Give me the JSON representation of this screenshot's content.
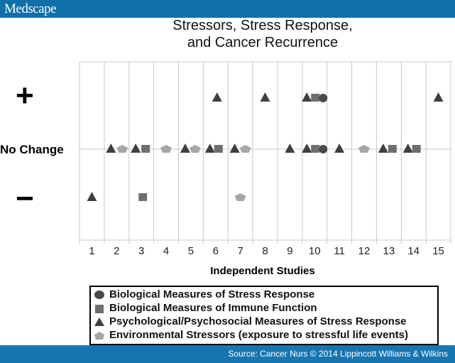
{
  "header": {
    "logo": "Medscape"
  },
  "footer": {
    "source": "Source: Cancer Nurs © 2014 Lippincott Williams & Wilkins"
  },
  "colors": {
    "bar": "#0f6fa8",
    "circle": "#4a4a4a",
    "square": "#6e6e6e",
    "triangle": "#3f3f3f",
    "pentagon": "#a6a6a6",
    "grid": "#c8c8c8"
  },
  "chart_data": {
    "type": "scatter",
    "title": "Stressors, Stress Response, and Cancer Recurrence",
    "title_lines": [
      "Stressors, Stress Response,",
      "and Cancer Recurrence"
    ],
    "xlabel": "Independent Studies",
    "ylabel": "",
    "categories": [
      "1",
      "2",
      "3",
      "4",
      "5",
      "6",
      "7",
      "8",
      "9",
      "10",
      "11",
      "12",
      "13",
      "14",
      "15"
    ],
    "y_categories": [
      "+",
      "No Change",
      "−"
    ],
    "grid": true,
    "legend_position": "bottom",
    "series": [
      {
        "name": "Biological Measures of Stress Response",
        "marker": "circle",
        "points": [
          {
            "study": 10,
            "effect": "+"
          },
          {
            "study": 10,
            "effect": "No Change"
          }
        ]
      },
      {
        "name": "Biological Measures of Immune Function",
        "marker": "square",
        "points": [
          {
            "study": 3,
            "effect": "No Change"
          },
          {
            "study": 3,
            "effect": "−"
          },
          {
            "study": 6,
            "effect": "No Change"
          },
          {
            "study": 10,
            "effect": "+"
          },
          {
            "study": 10,
            "effect": "No Change"
          },
          {
            "study": 13,
            "effect": "No Change"
          },
          {
            "study": 14,
            "effect": "No Change"
          }
        ]
      },
      {
        "name": "Psychological/Psychosocial Measures of  Stress Response",
        "marker": "triangle",
        "points": [
          {
            "study": 1,
            "effect": "−"
          },
          {
            "study": 2,
            "effect": "No Change"
          },
          {
            "study": 3,
            "effect": "No Change"
          },
          {
            "study": 5,
            "effect": "No Change"
          },
          {
            "study": 6,
            "effect": "+"
          },
          {
            "study": 6,
            "effect": "No Change"
          },
          {
            "study": 7,
            "effect": "No Change"
          },
          {
            "study": 8,
            "effect": "+"
          },
          {
            "study": 9,
            "effect": "No Change"
          },
          {
            "study": 10,
            "effect": "+"
          },
          {
            "study": 10,
            "effect": "No Change"
          },
          {
            "study": 11,
            "effect": "No Change"
          },
          {
            "study": 13,
            "effect": "No Change"
          },
          {
            "study": 14,
            "effect": "No Change"
          },
          {
            "study": 15,
            "effect": "+"
          }
        ]
      },
      {
        "name": "Environmental Stressors (exposure to stressful life events)",
        "marker": "pentagon",
        "points": [
          {
            "study": 2,
            "effect": "No Change"
          },
          {
            "study": 4,
            "effect": "No Change"
          },
          {
            "study": 5,
            "effect": "No Change"
          },
          {
            "study": 7,
            "effect": "No Change"
          },
          {
            "study": 7,
            "effect": "−"
          },
          {
            "study": 12,
            "effect": "No Change"
          }
        ]
      }
    ]
  },
  "legend": {
    "items": [
      {
        "label": "Biological Measures of Stress Response",
        "marker": "circle"
      },
      {
        "label": "Biological Measures of Immune Function",
        "marker": "square"
      },
      {
        "label": "Psychological/Psychosocial Measures of  Stress Response",
        "marker": "triangle"
      },
      {
        "label": "Environmental Stressors (exposure to stressful life events)",
        "marker": "pentagon"
      }
    ]
  },
  "markers": [
    {
      "study": 1,
      "row": 2,
      "shape": "triangle",
      "dx": 0
    },
    {
      "study": 2,
      "row": 1,
      "shape": "triangle",
      "dx": -8
    },
    {
      "study": 2,
      "row": 1,
      "shape": "pentagon",
      "dx": 8
    },
    {
      "study": 3,
      "row": 1,
      "shape": "triangle",
      "dx": -8
    },
    {
      "study": 3,
      "row": 1,
      "shape": "square",
      "dx": 6
    },
    {
      "study": 3,
      "row": 2,
      "shape": "square",
      "dx": 2
    },
    {
      "study": 4,
      "row": 1,
      "shape": "pentagon",
      "dx": 0
    },
    {
      "study": 5,
      "row": 1,
      "shape": "triangle",
      "dx": -8
    },
    {
      "study": 5,
      "row": 1,
      "shape": "pentagon",
      "dx": 6
    },
    {
      "study": 6,
      "row": 0,
      "shape": "triangle",
      "dx": 2
    },
    {
      "study": 6,
      "row": 1,
      "shape": "triangle",
      "dx": -8
    },
    {
      "study": 6,
      "row": 1,
      "shape": "square",
      "dx": 4
    },
    {
      "study": 7,
      "row": 1,
      "shape": "triangle",
      "dx": -8
    },
    {
      "study": 7,
      "row": 1,
      "shape": "pentagon",
      "dx": 7
    },
    {
      "study": 7,
      "row": 2,
      "shape": "pentagon",
      "dx": 0
    },
    {
      "study": 8,
      "row": 0,
      "shape": "triangle",
      "dx": 0
    },
    {
      "study": 9,
      "row": 1,
      "shape": "triangle",
      "dx": 0
    },
    {
      "study": 10,
      "row": 0,
      "shape": "triangle",
      "dx": -11
    },
    {
      "study": 10,
      "row": 0,
      "shape": "square",
      "dx": 1
    },
    {
      "study": 10,
      "row": 0,
      "shape": "circle",
      "dx": 12
    },
    {
      "study": 10,
      "row": 1,
      "shape": "triangle",
      "dx": -11
    },
    {
      "study": 10,
      "row": 1,
      "shape": "square",
      "dx": 1
    },
    {
      "study": 10,
      "row": 1,
      "shape": "circle",
      "dx": 12
    },
    {
      "study": 11,
      "row": 1,
      "shape": "triangle",
      "dx": 0
    },
    {
      "study": 12,
      "row": 1,
      "shape": "pentagon",
      "dx": 0
    },
    {
      "study": 13,
      "row": 1,
      "shape": "triangle",
      "dx": -8
    },
    {
      "study": 13,
      "row": 1,
      "shape": "square",
      "dx": 5
    },
    {
      "study": 14,
      "row": 1,
      "shape": "triangle",
      "dx": -8
    },
    {
      "study": 14,
      "row": 1,
      "shape": "square",
      "dx": 4
    },
    {
      "study": 15,
      "row": 0,
      "shape": "triangle",
      "dx": 0
    }
  ]
}
